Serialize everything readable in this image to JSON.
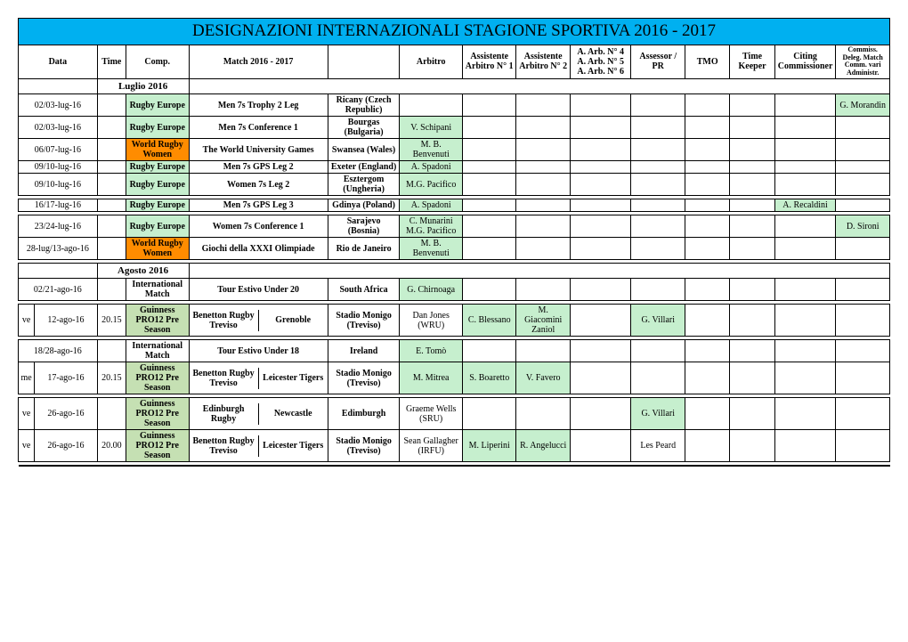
{
  "title": "DESIGNAZIONI INTERNAZIONALI   STAGIONE SPORTIVA 2016 - 2017",
  "headers": {
    "dow": "",
    "data": "Data",
    "time": "Time",
    "comp": "Comp.",
    "match": "Match  2016 - 2017",
    "venue": "",
    "arbitro": "Arbitro",
    "ass1_top": "Assistente",
    "ass1_bot": "Arbitro N° 1",
    "ass2_top": "Assistente",
    "ass2_bot": "Arbitro N° 2",
    "arb4": "A. Arb. N° 4",
    "arb5": "A. Arb. N° 5",
    "arb6": "A. Arb. N° 6",
    "assessor_top": "Assessor /",
    "assessor_bot": "PR",
    "tmo": "TMO",
    "tk_top": "Time",
    "tk_bot": "Keeper",
    "citing_top": "Citing",
    "citing_bot": "Commissioner",
    "com1": "Commiss.",
    "com2": "Deleg. Match",
    "com3": "Comm. vari",
    "com4": "Administr."
  },
  "colors": {
    "title_bg": "#00b0f0",
    "orange": "#ff8c00",
    "green": "#c6efce",
    "greenlight": "#c5e0b3"
  },
  "months": {
    "luglio": "Luglio 2016",
    "agosto": "Agosto 2016"
  },
  "rows": [
    {
      "dow": "",
      "date": "02/03-lug-16",
      "time": "",
      "comp": "Rugby Europe",
      "comp_bg": "green",
      "match": "Men 7s Trophy 2 Leg",
      "venue": "Ricany (Czech Republic)",
      "arb": "",
      "a1": "",
      "a2": "",
      "a456": "",
      "ass": "",
      "tmo": "",
      "tk": "",
      "cit": "",
      "com": "G. Morandin",
      "com_bg": "green"
    },
    {
      "dow": "",
      "date": "02/03-lug-16",
      "time": "",
      "comp": "Rugby Europe",
      "comp_bg": "green",
      "match": "Men 7s Conference 1",
      "venue": "Bourgas (Bulgaria)",
      "arb": "V. Schipani",
      "arb_bg": "green",
      "a1": "",
      "a2": "",
      "a456": "",
      "ass": "",
      "tmo": "",
      "tk": "",
      "cit": "",
      "com": ""
    },
    {
      "dow": "",
      "date": "06/07-lug-16",
      "time": "",
      "comp": "World Rugby Women",
      "comp_bg": "orange",
      "match": "The World University Games",
      "venue": "Swansea (Wales)",
      "arb": "M. B. Benvenuti",
      "arb_bg": "green",
      "a1": "",
      "a2": "",
      "a456": "",
      "ass": "",
      "tmo": "",
      "tk": "",
      "cit": "",
      "com": ""
    },
    {
      "dow": "",
      "date": "09/10-lug-16",
      "time": "",
      "comp": "Rugby Europe",
      "comp_bg": "green",
      "match": "Men 7s GPS Leg 2",
      "venue": "Exeter (England)",
      "arb": "A. Spadoni",
      "arb_bg": "green",
      "a1": "",
      "a2": "",
      "a456": "",
      "ass": "",
      "tmo": "",
      "tk": "",
      "cit": "",
      "com": ""
    },
    {
      "dow": "",
      "date": "09/10-lug-16",
      "time": "",
      "comp": "Rugby Europe",
      "comp_bg": "green",
      "match": "Women 7s Leg 2",
      "venue": "Esztergom (Ungheria)",
      "arb": "M.G. Pacifico",
      "arb_bg": "green",
      "a1": "",
      "a2": "",
      "a456": "",
      "ass": "",
      "tmo": "",
      "tk": "",
      "cit": "",
      "com": ""
    }
  ],
  "rows2": [
    {
      "dow": "",
      "date": "16/17-lug-16",
      "time": "",
      "comp": "Rugby Europe",
      "comp_bg": "green",
      "match": "Men 7s GPS Leg 3",
      "venue": "Gdinya (Poland)",
      "arb": "A. Spadoni",
      "arb_bg": "green",
      "a1": "",
      "a2": "",
      "a456": "",
      "ass": "",
      "tmo": "",
      "tk": "",
      "cit": "A. Recaldini",
      "cit_bg": "green",
      "com": ""
    }
  ],
  "rows3": [
    {
      "dow": "",
      "date": "23/24-lug-16",
      "time": "",
      "comp": "Rugby Europe",
      "comp_bg": "green",
      "match": "Women 7s Conference 1",
      "venue": "Sarajevo (Bosnia)",
      "arb": "C. Munarini\nM.G. Pacifico",
      "arb_bg": "green",
      "a1": "",
      "a2": "",
      "a456": "",
      "ass": "",
      "tmo": "",
      "tk": "",
      "cit": "",
      "com": "D. Sironi",
      "com_bg": "green"
    },
    {
      "dow": "",
      "date": "28-lug/13-ago-16",
      "time": "",
      "comp": "World Rugby Women",
      "comp_bg": "orange",
      "match": "Giochi della XXXI Olimpiade",
      "venue": "Rio de Janeiro",
      "arb": "M. B. Benvenuti",
      "arb_bg": "green",
      "a1": "",
      "a2": "",
      "a456": "",
      "ass": "",
      "tmo": "",
      "tk": "",
      "cit": "",
      "com": ""
    }
  ],
  "rows_ago1": [
    {
      "dow": "",
      "date": "02/21-ago-16",
      "time": "",
      "comp": "International Match",
      "comp_bg": "",
      "match": "Tour Estivo Under 20",
      "venue": "South Africa",
      "arb": "G. Chirnoaga",
      "arb_bg": "green",
      "a1": "",
      "a2": "",
      "a456": "",
      "ass": "",
      "tmo": "",
      "tk": "",
      "cit": "",
      "com": ""
    }
  ],
  "rows_ago2": [
    {
      "dow": "ve",
      "date": "12-ago-16",
      "time": "20.15",
      "comp": "Guinness PRO12 Pre Season",
      "comp_bg": "greenlight",
      "match_l": "Benetton Rugby Treviso",
      "match_r": "Grenoble",
      "venue": "Stadio Monigo (Treviso)",
      "arb": "Dan Jones (WRU)",
      "arb_bg": "",
      "a1": "C. Blessano",
      "a1_bg": "green",
      "a2": "M. Giacomini Zaniol",
      "a2_bg": "green",
      "a456": "",
      "ass": "G. Villari",
      "ass_bg": "green",
      "tmo": "",
      "tk": "",
      "cit": "",
      "com": ""
    }
  ],
  "rows_ago3": [
    {
      "dow": "",
      "date": "18/28-ago-16",
      "time": "",
      "comp": "International Match",
      "comp_bg": "",
      "match": "Tour Estivo Under 18",
      "venue": "Ireland",
      "arb": "E. Tomò",
      "arb_bg": "green",
      "a1": "",
      "a2": "",
      "a456": "",
      "ass": "",
      "tmo": "",
      "tk": "",
      "cit": "",
      "com": ""
    },
    {
      "dow": "me",
      "date": "17-ago-16",
      "time": "20.15",
      "comp": "Guinness PRO12 Pre Season",
      "comp_bg": "greenlight",
      "match_l": "Benetton Rugby Treviso",
      "match_r": "Leicester Tigers",
      "venue": "Stadio Monigo (Treviso)",
      "arb": "M. Mitrea",
      "arb_bg": "green",
      "a1": "S. Boaretto",
      "a1_bg": "green",
      "a2": "V. Favero",
      "a2_bg": "green",
      "a456": "",
      "ass": "",
      "tmo": "",
      "tk": "",
      "cit": "",
      "com": ""
    }
  ],
  "rows_ago4": [
    {
      "dow": "ve",
      "date": "26-ago-16",
      "time": "",
      "comp": "Guinness PRO12 Pre Season",
      "comp_bg": "greenlight",
      "match_l": "Edinburgh Rugby",
      "match_r": "Newcastle",
      "venue": "Edimburgh",
      "arb": "Graeme Wells (SRU)",
      "arb_bg": "",
      "a1": "",
      "a2": "",
      "a456": "",
      "ass": "G. Villari",
      "ass_bg": "green",
      "tmo": "",
      "tk": "",
      "cit": "",
      "com": ""
    },
    {
      "dow": "ve",
      "date": "26-ago-16",
      "time": "20.00",
      "comp": "Guinness PRO12 Pre Season",
      "comp_bg": "greenlight",
      "match_l": "Benetton Rugby Treviso",
      "match_r": "Leicester Tigers",
      "venue": "Stadio Monigo (Treviso)",
      "arb": "Sean Gallagher (IRFU)",
      "arb_bg": "",
      "a1": "M. Liperini",
      "a1_bg": "green",
      "a2": "R. Angelucci",
      "a2_bg": "green",
      "a456": "",
      "ass": "Les Peard",
      "ass_bg": "",
      "tmo": "",
      "tk": "",
      "cit": "",
      "com": ""
    }
  ]
}
